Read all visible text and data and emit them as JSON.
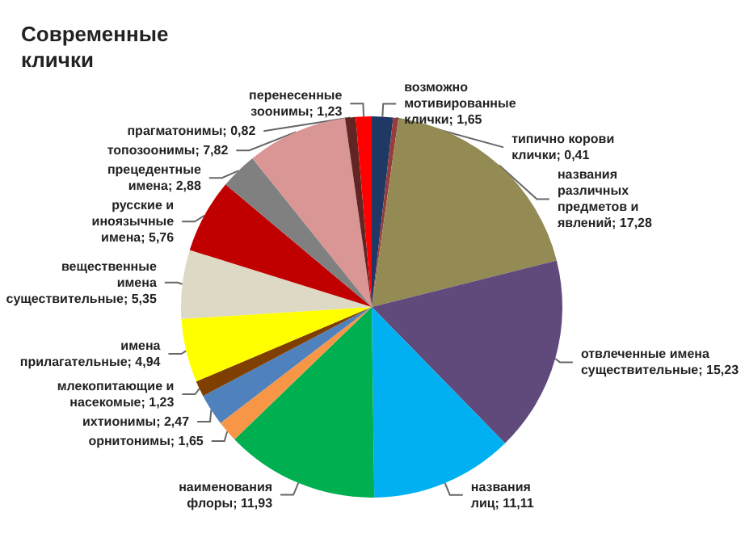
{
  "chart_data": {
    "type": "pie",
    "title": "Современные клички",
    "categories": [
      "возможно мотивированные клички",
      "типично корови клички",
      "названия различных предметов и явлений",
      "отвлеченные имена существительные",
      "названия лиц",
      "наименования флоры",
      "орнитонимы",
      "ихтионимы",
      "млекопитающие и насекомые",
      "имена прилагательные",
      "вещественные имена существительные",
      "русские и иноязычные имена",
      "прецедентные имена",
      "топозоонимы",
      "прагматонимы",
      "перенесенные зоонимы"
    ],
    "values": [
      1.65,
      0.41,
      17.28,
      15.23,
      11.11,
      11.93,
      1.65,
      2.47,
      1.23,
      4.94,
      5.35,
      5.76,
      2.88,
      7.82,
      0.82,
      1.23
    ],
    "value_labels": [
      "1,65",
      "0,41",
      "17,28",
      "15,23",
      "11,11",
      "11,93",
      "1,65",
      "2,47",
      "1,23",
      "4,94",
      "5,35",
      "5,76",
      "2,88",
      "7,82",
      "0,82",
      "1,23"
    ],
    "colors": [
      "#1f3864",
      "#963c3c",
      "#948a54",
      "#604a7b",
      "#00b0f0",
      "#00b050",
      "#f79646",
      "#4f81bd",
      "#7f3f00",
      "#ffff00",
      "#ddd9c4",
      "#c00000",
      "#808080",
      "#d99694",
      "#632523",
      "#ff0000"
    ]
  }
}
